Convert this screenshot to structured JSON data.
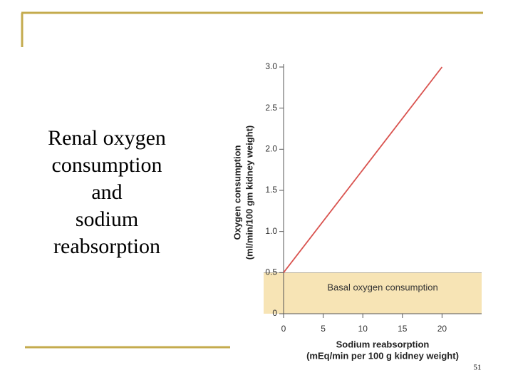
{
  "slide": {
    "title_lines": [
      "Renal oxygen",
      "consumption",
      "and",
      "sodium",
      "reabsorption"
    ],
    "page_number": "51"
  },
  "chart_data": {
    "type": "line",
    "x_label_lines": [
      "Sodium reabsorption",
      "(mEq/min per 100 g kidney weight)"
    ],
    "y_label_lines": [
      "Oxygen consumption",
      "(ml/min/100 gm kidney weight)"
    ],
    "x": [
      0,
      20
    ],
    "series": [
      {
        "color": "#d9534f",
        "values": [
          0.5,
          3.0
        ]
      }
    ],
    "xlim": [
      0,
      25
    ],
    "xticks": [
      0,
      5,
      10,
      15,
      20
    ],
    "ylim": [
      0,
      3.0
    ],
    "yticks": [
      0,
      0.5,
      {
        "value": 1,
        "label": "1.0"
      },
      1.5,
      {
        "value": 2,
        "label": "2.0"
      },
      2.5,
      {
        "value": 3,
        "label": "3.0"
      }
    ],
    "basal_band": {
      "label": "Basal oxygen consumption",
      "value": 0.5,
      "color": "#f7e4b5"
    }
  }
}
